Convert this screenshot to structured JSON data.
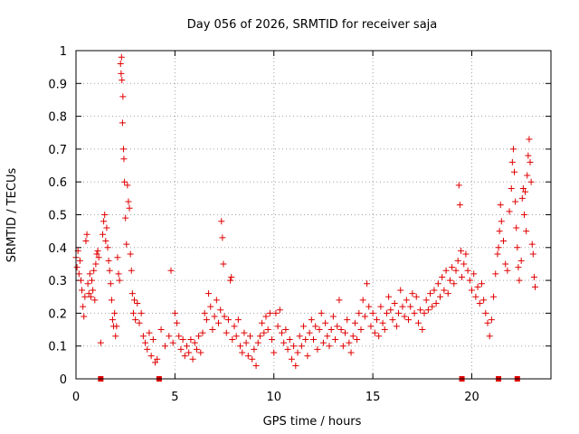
{
  "chart_data": {
    "type": "scatter",
    "title": "Day 056 of 2026, SRMTID for receiver saja",
    "xlabel": "GPS time / hours",
    "ylabel": "SRMTID / TECUs",
    "xlim": [
      0,
      24
    ],
    "ylim": [
      0,
      1
    ],
    "xticks": [
      0,
      5,
      10,
      15,
      20
    ],
    "yticks": [
      0,
      0.1,
      0.2,
      0.3,
      0.4,
      0.5,
      0.6,
      0.7,
      0.8,
      0.9,
      1
    ],
    "xtick_labels": [
      "0",
      "5",
      "10",
      "15",
      "20"
    ],
    "ytick_labels": [
      "0",
      "0.1",
      "0.2",
      "0.3",
      "0.4",
      "0.5",
      "0.6",
      "0.7",
      "0.8",
      "0.9",
      "1"
    ],
    "grid": true,
    "marker": "plus",
    "color": "#e00000",
    "zero_markers_x": [
      1.25,
      4.2,
      19.5,
      21.35,
      22.3
    ],
    "series": [
      {
        "name": "SRMTID",
        "points": [
          [
            0.0,
            0.37
          ],
          [
            0.05,
            0.34
          ],
          [
            0.1,
            0.39
          ],
          [
            0.15,
            0.32
          ],
          [
            0.2,
            0.36
          ],
          [
            0.25,
            0.3
          ],
          [
            0.3,
            0.27
          ],
          [
            0.35,
            0.22
          ],
          [
            0.4,
            0.19
          ],
          [
            0.45,
            0.25
          ],
          [
            0.5,
            0.42
          ],
          [
            0.55,
            0.44
          ],
          [
            0.6,
            0.29
          ],
          [
            0.65,
            0.26
          ],
          [
            0.7,
            0.32
          ],
          [
            0.75,
            0.25
          ],
          [
            0.8,
            0.3
          ],
          [
            0.85,
            0.27
          ],
          [
            0.9,
            0.33
          ],
          [
            0.95,
            0.24
          ],
          [
            1.0,
            0.35
          ],
          [
            1.05,
            0.38
          ],
          [
            1.1,
            0.39
          ],
          [
            1.15,
            0.37
          ],
          [
            1.25,
            0.11
          ],
          [
            1.35,
            0.44
          ],
          [
            1.4,
            0.48
          ],
          [
            1.45,
            0.5
          ],
          [
            1.5,
            0.42
          ],
          [
            1.55,
            0.46
          ],
          [
            1.6,
            0.4
          ],
          [
            1.65,
            0.36
          ],
          [
            1.7,
            0.33
          ],
          [
            1.75,
            0.29
          ],
          [
            1.8,
            0.24
          ],
          [
            1.85,
            0.18
          ],
          [
            1.9,
            0.16
          ],
          [
            1.95,
            0.2
          ],
          [
            2.0,
            0.13
          ],
          [
            2.05,
            0.16
          ],
          [
            2.1,
            0.37
          ],
          [
            2.15,
            0.32
          ],
          [
            2.2,
            0.3
          ],
          [
            2.25,
            0.96
          ],
          [
            2.28,
            0.93
          ],
          [
            2.3,
            0.98
          ],
          [
            2.32,
            0.91
          ],
          [
            2.35,
            0.78
          ],
          [
            2.37,
            0.86
          ],
          [
            2.4,
            0.7
          ],
          [
            2.42,
            0.67
          ],
          [
            2.45,
            0.6
          ],
          [
            2.5,
            0.49
          ],
          [
            2.55,
            0.41
          ],
          [
            2.6,
            0.59
          ],
          [
            2.65,
            0.54
          ],
          [
            2.7,
            0.52
          ],
          [
            2.75,
            0.38
          ],
          [
            2.8,
            0.33
          ],
          [
            2.85,
            0.26
          ],
          [
            2.9,
            0.2
          ],
          [
            2.95,
            0.24
          ],
          [
            3.0,
            0.18
          ],
          [
            3.1,
            0.23
          ],
          [
            3.2,
            0.17
          ],
          [
            3.3,
            0.2
          ],
          [
            3.4,
            0.13
          ],
          [
            3.5,
            0.11
          ],
          [
            3.6,
            0.09
          ],
          [
            3.7,
            0.14
          ],
          [
            3.8,
            0.07
          ],
          [
            3.9,
            0.12
          ],
          [
            4.0,
            0.05
          ],
          [
            4.1,
            0.06
          ],
          [
            4.3,
            0.15
          ],
          [
            4.5,
            0.1
          ],
          [
            4.7,
            0.13
          ],
          [
            4.8,
            0.33
          ],
          [
            4.9,
            0.11
          ],
          [
            5.0,
            0.2
          ],
          [
            5.1,
            0.17
          ],
          [
            5.2,
            0.13
          ],
          [
            5.3,
            0.09
          ],
          [
            5.4,
            0.12
          ],
          [
            5.5,
            0.07
          ],
          [
            5.6,
            0.1
          ],
          [
            5.7,
            0.08
          ],
          [
            5.8,
            0.12
          ],
          [
            5.9,
            0.06
          ],
          [
            6.0,
            0.11
          ],
          [
            6.1,
            0.09
          ],
          [
            6.2,
            0.13
          ],
          [
            6.3,
            0.08
          ],
          [
            6.4,
            0.14
          ],
          [
            6.5,
            0.2
          ],
          [
            6.6,
            0.18
          ],
          [
            6.7,
            0.26
          ],
          [
            6.8,
            0.22
          ],
          [
            6.9,
            0.15
          ],
          [
            7.0,
            0.19
          ],
          [
            7.1,
            0.24
          ],
          [
            7.2,
            0.17
          ],
          [
            7.3,
            0.21
          ],
          [
            7.35,
            0.48
          ],
          [
            7.4,
            0.43
          ],
          [
            7.45,
            0.35
          ],
          [
            7.5,
            0.19
          ],
          [
            7.6,
            0.14
          ],
          [
            7.7,
            0.18
          ],
          [
            7.8,
            0.3
          ],
          [
            7.85,
            0.31
          ],
          [
            7.9,
            0.12
          ],
          [
            8.0,
            0.16
          ],
          [
            8.1,
            0.13
          ],
          [
            8.2,
            0.18
          ],
          [
            8.3,
            0.1
          ],
          [
            8.4,
            0.08
          ],
          [
            8.5,
            0.14
          ],
          [
            8.6,
            0.11
          ],
          [
            8.7,
            0.07
          ],
          [
            8.8,
            0.13
          ],
          [
            8.9,
            0.06
          ],
          [
            9.0,
            0.09
          ],
          [
            9.1,
            0.04
          ],
          [
            9.2,
            0.11
          ],
          [
            9.3,
            0.13
          ],
          [
            9.4,
            0.17
          ],
          [
            9.5,
            0.14
          ],
          [
            9.6,
            0.19
          ],
          [
            9.7,
            0.15
          ],
          [
            9.8,
            0.2
          ],
          [
            9.9,
            0.12
          ],
          [
            10.0,
            0.08
          ],
          [
            10.1,
            0.2
          ],
          [
            10.2,
            0.16
          ],
          [
            10.3,
            0.21
          ],
          [
            10.4,
            0.14
          ],
          [
            10.5,
            0.11
          ],
          [
            10.6,
            0.15
          ],
          [
            10.7,
            0.09
          ],
          [
            10.8,
            0.12
          ],
          [
            10.9,
            0.06
          ],
          [
            11.0,
            0.1
          ],
          [
            11.1,
            0.04
          ],
          [
            11.2,
            0.08
          ],
          [
            11.3,
            0.13
          ],
          [
            11.4,
            0.1
          ],
          [
            11.5,
            0.16
          ],
          [
            11.6,
            0.12
          ],
          [
            11.7,
            0.07
          ],
          [
            11.8,
            0.14
          ],
          [
            11.9,
            0.18
          ],
          [
            12.0,
            0.12
          ],
          [
            12.1,
            0.16
          ],
          [
            12.2,
            0.09
          ],
          [
            12.3,
            0.15
          ],
          [
            12.4,
            0.2
          ],
          [
            12.5,
            0.11
          ],
          [
            12.6,
            0.17
          ],
          [
            12.7,
            0.13
          ],
          [
            12.8,
            0.1
          ],
          [
            12.9,
            0.15
          ],
          [
            13.0,
            0.19
          ],
          [
            13.1,
            0.12
          ],
          [
            13.2,
            0.16
          ],
          [
            13.3,
            0.24
          ],
          [
            13.4,
            0.15
          ],
          [
            13.5,
            0.1
          ],
          [
            13.6,
            0.14
          ],
          [
            13.7,
            0.18
          ],
          [
            13.8,
            0.11
          ],
          [
            13.9,
            0.08
          ],
          [
            14.0,
            0.13
          ],
          [
            14.1,
            0.17
          ],
          [
            14.2,
            0.12
          ],
          [
            14.3,
            0.2
          ],
          [
            14.4,
            0.15
          ],
          [
            14.5,
            0.24
          ],
          [
            14.6,
            0.19
          ],
          [
            14.7,
            0.29
          ],
          [
            14.8,
            0.22
          ],
          [
            14.9,
            0.16
          ],
          [
            15.0,
            0.2
          ],
          [
            15.1,
            0.14
          ],
          [
            15.2,
            0.18
          ],
          [
            15.3,
            0.13
          ],
          [
            15.4,
            0.22
          ],
          [
            15.5,
            0.17
          ],
          [
            15.6,
            0.15
          ],
          [
            15.7,
            0.2
          ],
          [
            15.8,
            0.25
          ],
          [
            15.9,
            0.21
          ],
          [
            16.0,
            0.18
          ],
          [
            16.1,
            0.23
          ],
          [
            16.2,
            0.16
          ],
          [
            16.3,
            0.2
          ],
          [
            16.4,
            0.27
          ],
          [
            16.5,
            0.22
          ],
          [
            16.6,
            0.19
          ],
          [
            16.7,
            0.24
          ],
          [
            16.8,
            0.18
          ],
          [
            16.9,
            0.22
          ],
          [
            17.0,
            0.26
          ],
          [
            17.1,
            0.2
          ],
          [
            17.2,
            0.25
          ],
          [
            17.3,
            0.17
          ],
          [
            17.4,
            0.21
          ],
          [
            17.5,
            0.15
          ],
          [
            17.6,
            0.2
          ],
          [
            17.7,
            0.24
          ],
          [
            17.8,
            0.21
          ],
          [
            17.9,
            0.26
          ],
          [
            18.0,
            0.22
          ],
          [
            18.1,
            0.27
          ],
          [
            18.2,
            0.23
          ],
          [
            18.3,
            0.29
          ],
          [
            18.4,
            0.25
          ],
          [
            18.5,
            0.31
          ],
          [
            18.6,
            0.27
          ],
          [
            18.7,
            0.33
          ],
          [
            18.8,
            0.26
          ],
          [
            18.9,
            0.3
          ],
          [
            19.0,
            0.34
          ],
          [
            19.1,
            0.29
          ],
          [
            19.2,
            0.33
          ],
          [
            19.3,
            0.36
          ],
          [
            19.35,
            0.59
          ],
          [
            19.4,
            0.53
          ],
          [
            19.45,
            0.39
          ],
          [
            19.5,
            0.31
          ],
          [
            19.6,
            0.35
          ],
          [
            19.7,
            0.38
          ],
          [
            19.8,
            0.33
          ],
          [
            19.9,
            0.3
          ],
          [
            20.0,
            0.27
          ],
          [
            20.1,
            0.32
          ],
          [
            20.2,
            0.25
          ],
          [
            20.3,
            0.28
          ],
          [
            20.4,
            0.23
          ],
          [
            20.5,
            0.29
          ],
          [
            20.6,
            0.24
          ],
          [
            20.7,
            0.2
          ],
          [
            20.8,
            0.17
          ],
          [
            20.9,
            0.13
          ],
          [
            21.0,
            0.18
          ],
          [
            21.1,
            0.25
          ],
          [
            21.2,
            0.32
          ],
          [
            21.3,
            0.38
          ],
          [
            21.35,
            0.4
          ],
          [
            21.4,
            0.45
          ],
          [
            21.45,
            0.53
          ],
          [
            21.5,
            0.48
          ],
          [
            21.6,
            0.42
          ],
          [
            21.7,
            0.35
          ],
          [
            21.8,
            0.33
          ],
          [
            21.9,
            0.51
          ],
          [
            22.0,
            0.58
          ],
          [
            22.05,
            0.66
          ],
          [
            22.1,
            0.7
          ],
          [
            22.15,
            0.63
          ],
          [
            22.2,
            0.54
          ],
          [
            22.25,
            0.46
          ],
          [
            22.3,
            0.4
          ],
          [
            22.35,
            0.34
          ],
          [
            22.4,
            0.3
          ],
          [
            22.5,
            0.36
          ],
          [
            22.55,
            0.55
          ],
          [
            22.6,
            0.58
          ],
          [
            22.65,
            0.5
          ],
          [
            22.7,
            0.57
          ],
          [
            22.75,
            0.45
          ],
          [
            22.8,
            0.62
          ],
          [
            22.85,
            0.68
          ],
          [
            22.9,
            0.73
          ],
          [
            22.95,
            0.66
          ],
          [
            23.0,
            0.6
          ],
          [
            23.05,
            0.41
          ],
          [
            23.1,
            0.38
          ],
          [
            23.15,
            0.31
          ],
          [
            23.2,
            0.28
          ]
        ]
      }
    ]
  }
}
